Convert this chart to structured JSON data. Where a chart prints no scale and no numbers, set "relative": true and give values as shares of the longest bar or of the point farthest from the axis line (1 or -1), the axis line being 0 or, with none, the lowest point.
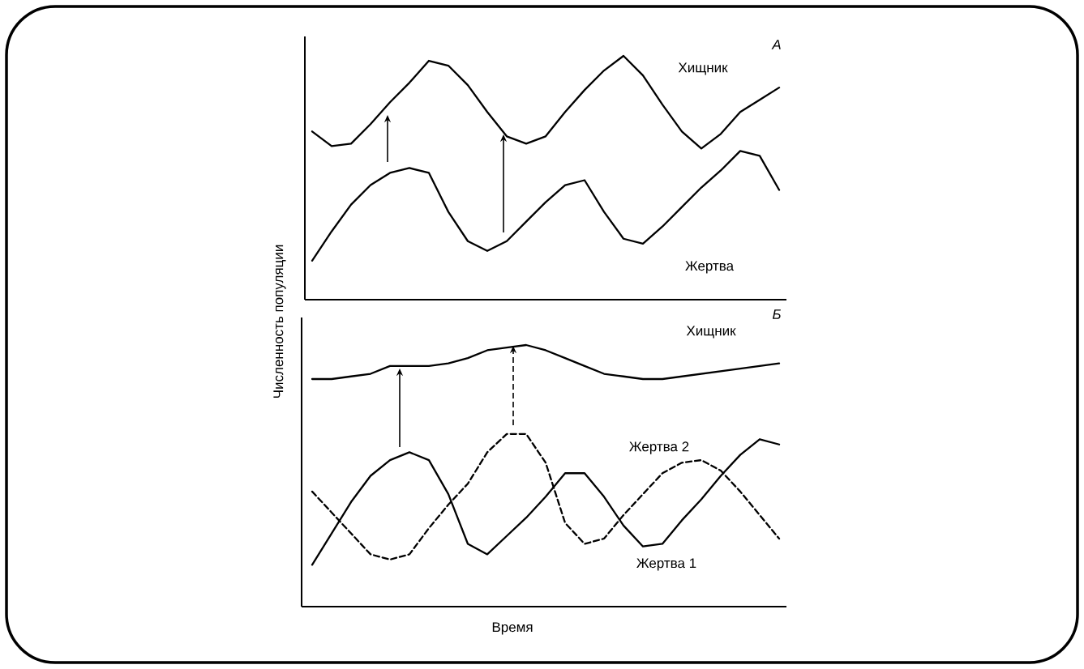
{
  "chart_data": [
    {
      "type": "line",
      "relative": true,
      "ylabel": "Численность популяции",
      "annotations": [
        "А"
      ],
      "categories": [
        null,
        null,
        null,
        null,
        null,
        null,
        null,
        null,
        null,
        null,
        null,
        null,
        null,
        null,
        null,
        null,
        null,
        null,
        null,
        null,
        null,
        null,
        null,
        null,
        null
      ],
      "series": [
        {
          "name": "Хищник",
          "color": "#000000",
          "line_style": "solid",
          "values": [
            0.69,
            0.63,
            0.64,
            0.72,
            0.81,
            0.89,
            0.98,
            0.96,
            0.88,
            0.77,
            0.67,
            0.64,
            0.67,
            0.77,
            0.86,
            0.94,
            1.0,
            0.92,
            0.8,
            0.69,
            0.62,
            0.68,
            0.77,
            0.82,
            0.87
          ]
        },
        {
          "name": "Жертва",
          "color": "#000000",
          "line_style": "solid",
          "values": [
            0.16,
            0.28,
            0.39,
            0.47,
            0.52,
            0.54,
            0.52,
            0.36,
            0.24,
            0.2,
            0.24,
            0.32,
            0.4,
            0.47,
            0.49,
            0.36,
            0.25,
            0.23,
            0.3,
            0.38,
            0.46,
            0.53,
            0.61,
            0.59,
            0.45
          ]
        }
      ]
    },
    {
      "type": "line",
      "relative": true,
      "xlabel": "Время",
      "annotations": [
        "Б"
      ],
      "categories": [
        null,
        null,
        null,
        null,
        null,
        null,
        null,
        null,
        null,
        null,
        null,
        null,
        null,
        null,
        null,
        null,
        null,
        null,
        null,
        null,
        null,
        null,
        null,
        null,
        null
      ],
      "series": [
        {
          "name": "Хищник",
          "color": "#000000",
          "line_style": "solid",
          "values": [
            0.87,
            0.87,
            0.88,
            0.89,
            0.92,
            0.92,
            0.92,
            0.93,
            0.95,
            0.98,
            0.99,
            1.0,
            0.98,
            0.95,
            0.92,
            0.89,
            0.88,
            0.87,
            0.87,
            0.88,
            0.89,
            0.9,
            0.91,
            0.92,
            0.93
          ]
        },
        {
          "name": "Жертва 2",
          "color": "#000000",
          "line_style": "dashed",
          "values": [
            0.44,
            0.36,
            0.28,
            0.2,
            0.18,
            0.2,
            0.3,
            0.39,
            0.47,
            0.59,
            0.66,
            0.66,
            0.55,
            0.32,
            0.24,
            0.26,
            0.35,
            0.43,
            0.51,
            0.55,
            0.56,
            0.52,
            0.44,
            0.35,
            0.26
          ]
        },
        {
          "name": "Жертва 1",
          "color": "#000000",
          "line_style": "solid",
          "values": [
            0.16,
            0.28,
            0.4,
            0.5,
            0.56,
            0.59,
            0.56,
            0.43,
            0.24,
            0.2,
            0.27,
            0.34,
            0.42,
            0.51,
            0.51,
            0.42,
            0.31,
            0.23,
            0.24,
            0.33,
            0.41,
            0.5,
            0.58,
            0.64,
            0.62
          ]
        }
      ]
    }
  ]
}
